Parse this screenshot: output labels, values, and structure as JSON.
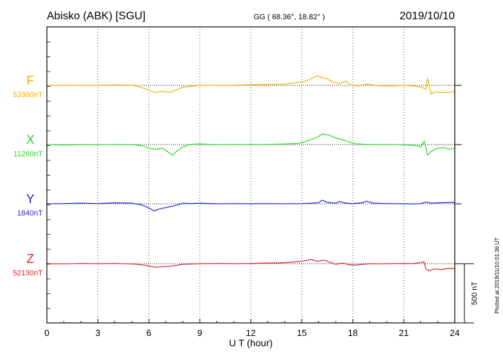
{
  "header": {
    "station": "Abisko (ABK)  [SGU]",
    "coords": "GG ( 68.36°,  18.82° )",
    "date": "2019/10/10"
  },
  "plotted_note": "Plotted at 2019/11/10 01:36 UT",
  "scale_bar_label": "500 nT",
  "chart_data": {
    "type": "line",
    "xlabel": "U T (hour)",
    "xlim": [
      0,
      24
    ],
    "xticks": [
      "0",
      "3",
      "6",
      "9",
      "12",
      "15",
      "18",
      "21",
      "24"
    ],
    "grid": true,
    "scale_nT": 500,
    "series": [
      {
        "name": "F",
        "baseline_label": "53360nT",
        "baseline_nT": 53360,
        "color": "#f0b000",
        "x": [
          0,
          1,
          2,
          3,
          4,
          5,
          5.6,
          6.0,
          6.4,
          6.8,
          7.2,
          7.6,
          8.0,
          9,
          10,
          11,
          12,
          13,
          14,
          14.8,
          15.2,
          15.6,
          15.9,
          16.2,
          16.5,
          16.8,
          17.2,
          17.6,
          17.9,
          18.3,
          18.6,
          18.9,
          19.3,
          20,
          21,
          21.6,
          22.0,
          22.3,
          22.4,
          22.6,
          22.9,
          23.2,
          23.6,
          24
        ],
        "y": [
          53360,
          53360,
          53362,
          53362,
          53364,
          53362,
          53340,
          53320,
          53300,
          53310,
          53300,
          53320,
          53345,
          53360,
          53362,
          53362,
          53365,
          53368,
          53370,
          53385,
          53395,
          53420,
          53440,
          53425,
          53415,
          53390,
          53375,
          53395,
          53360,
          53355,
          53365,
          53370,
          53360,
          53355,
          53360,
          53355,
          53345,
          53330,
          53420,
          53290,
          53305,
          53300,
          53300,
          53310
        ]
      },
      {
        "name": "X",
        "baseline_label": "11260nT",
        "baseline_nT": 11260,
        "color": "#22dd22",
        "x": [
          0,
          1,
          2,
          3,
          4,
          5,
          5.6,
          6.0,
          6.4,
          6.8,
          7.0,
          7.4,
          7.6,
          8.0,
          8.4,
          9,
          10,
          11,
          12,
          13,
          14,
          14.8,
          15.2,
          15.6,
          16.0,
          16.2,
          16.6,
          17.0,
          17.4,
          17.8,
          18.2,
          19,
          20,
          21,
          21.8,
          22.0,
          22.2,
          22.4,
          22.6,
          22.9,
          23.3,
          23.7,
          24
        ],
        "y": [
          11262,
          11255,
          11260,
          11258,
          11262,
          11260,
          11250,
          11230,
          11220,
          11230,
          11210,
          11170,
          11200,
          11240,
          11262,
          11265,
          11260,
          11262,
          11262,
          11262,
          11265,
          11270,
          11285,
          11305,
          11330,
          11350,
          11340,
          11315,
          11300,
          11280,
          11265,
          11262,
          11262,
          11258,
          11250,
          11240,
          11290,
          11170,
          11200,
          11225,
          11235,
          11220,
          11230
        ]
      },
      {
        "name": "Y",
        "baseline_label": "1840nT",
        "baseline_nT": 1840,
        "color": "#2222dd",
        "x": [
          0,
          1,
          2,
          3,
          4,
          5,
          5.6,
          6.0,
          6.3,
          6.6,
          7.0,
          7.4,
          7.8,
          8.0,
          8.4,
          9,
          10,
          11,
          12,
          13,
          14,
          15,
          15.6,
          16.0,
          16.2,
          16.5,
          17.0,
          17.2,
          17.5,
          17.9,
          18.3,
          18.6,
          18.8,
          19.2,
          20,
          21,
          21.6,
          22.0,
          22.3,
          22.6,
          23,
          24
        ],
        "y": [
          1840,
          1842,
          1845,
          1842,
          1848,
          1845,
          1830,
          1805,
          1780,
          1795,
          1808,
          1820,
          1835,
          1845,
          1842,
          1845,
          1840,
          1842,
          1840,
          1842,
          1840,
          1842,
          1845,
          1850,
          1870,
          1852,
          1845,
          1860,
          1848,
          1842,
          1845,
          1850,
          1862,
          1845,
          1842,
          1840,
          1838,
          1842,
          1855,
          1845,
          1848,
          1852
        ]
      },
      {
        "name": "Z",
        "baseline_label": "52130nT",
        "baseline_nT": 52130,
        "color": "#dd2222",
        "x": [
          0,
          1,
          2,
          3,
          4,
          5,
          5.6,
          6.0,
          6.4,
          6.8,
          7.2,
          7.6,
          8.0,
          9,
          10,
          11,
          12,
          13,
          14,
          14.8,
          15.2,
          15.6,
          15.9,
          16.3,
          16.7,
          17.0,
          17.4,
          17.8,
          18.2,
          18.6,
          19.0,
          19.5,
          20,
          21,
          21.5,
          22.0,
          22.2,
          22.3,
          22.5,
          22.8,
          23.2,
          23.6,
          24
        ],
        "y": [
          52130,
          52128,
          52132,
          52130,
          52132,
          52128,
          52120,
          52110,
          52100,
          52105,
          52108,
          52115,
          52125,
          52130,
          52132,
          52130,
          52132,
          52135,
          52138,
          52148,
          52155,
          52165,
          52150,
          52160,
          52140,
          52125,
          52135,
          52120,
          52118,
          52125,
          52130,
          52128,
          52130,
          52132,
          52130,
          52140,
          52145,
          52085,
          52070,
          52085,
          52080,
          52090,
          52088
        ]
      }
    ]
  }
}
